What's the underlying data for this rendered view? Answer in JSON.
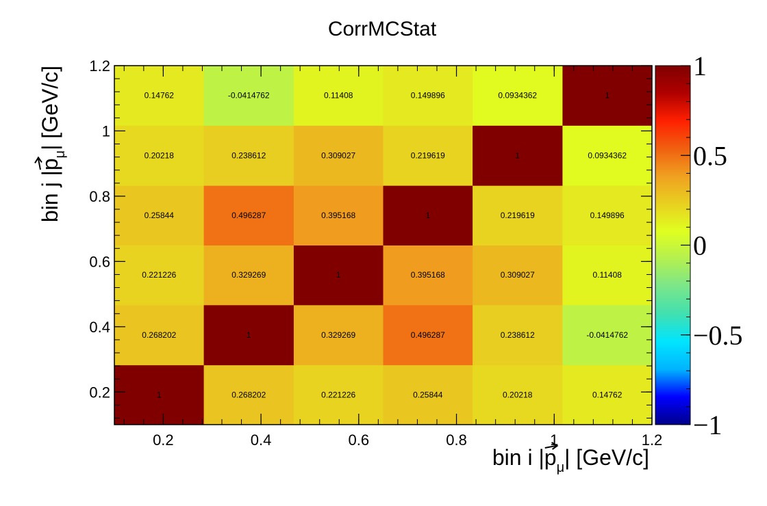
{
  "chart_data": {
    "type": "heatmap",
    "title": "CorrMCStat",
    "xlabel": {
      "prefix": "bin i |",
      "vec": "p",
      "sub": "μ",
      "suffix": "| [GeV/c]"
    },
    "ylabel": {
      "prefix": "bin j |",
      "vec": "p",
      "sub": "μ",
      "suffix": "| [GeV/c]"
    },
    "x_edges": [
      0.1,
      0.283,
      0.467,
      0.65,
      0.833,
      1.017,
      1.2
    ],
    "y_edges": [
      0.1,
      0.283,
      0.467,
      0.65,
      0.833,
      1.017,
      1.2
    ],
    "xlim": [
      0.1,
      1.2
    ],
    "ylim": [
      0.1,
      1.2
    ],
    "x_ticks": [
      0.2,
      0.4,
      0.6,
      0.8,
      1,
      1.2
    ],
    "x_tick_labels": [
      "0.2",
      "0.4",
      "0.6",
      "0.8",
      "1",
      "1.2"
    ],
    "y_ticks": [
      0.2,
      0.4,
      0.6,
      0.8,
      1,
      1.2
    ],
    "y_tick_labels": [
      "0.2",
      "0.4",
      "0.6",
      "0.8",
      "1",
      "1.2"
    ],
    "z": [
      [
        1,
        0.268202,
        0.221226,
        0.25844,
        0.20218,
        0.14762
      ],
      [
        0.268202,
        1,
        0.329269,
        0.496287,
        0.238612,
        -0.0414762
      ],
      [
        0.221226,
        0.329269,
        1,
        0.395168,
        0.309027,
        0.11408
      ],
      [
        0.25844,
        0.496287,
        0.395168,
        1,
        0.219619,
        0.149896
      ],
      [
        0.20218,
        0.238612,
        0.309027,
        0.219619,
        1,
        0.0934362
      ],
      [
        0.14762,
        -0.0414762,
        0.11408,
        0.149896,
        0.0934362,
        1
      ]
    ],
    "cell_labels": [
      [
        "1",
        "0.268202",
        "0.221226",
        "0.25844",
        "0.20218",
        "0.14762"
      ],
      [
        "0.268202",
        "1",
        "0.329269",
        "0.496287",
        "0.238612",
        "-0.0414762"
      ],
      [
        "0.221226",
        "0.329269",
        "1",
        "0.395168",
        "0.309027",
        "0.11408"
      ],
      [
        "0.25844",
        "0.496287",
        "0.395168",
        "1",
        "0.219619",
        "0.149896"
      ],
      [
        "0.20218",
        "0.238612",
        "0.309027",
        "0.219619",
        "1",
        "0.0934362"
      ],
      [
        "0.14762",
        "-0.0414762",
        "0.11408",
        "0.149896",
        "0.0934362",
        "1"
      ]
    ],
    "zlim": [
      -1,
      1
    ],
    "colorbar_ticks": [
      1,
      0.5,
      0,
      -0.5,
      -1
    ],
    "colorbar_tick_labels": [
      "1",
      "0.5",
      "0",
      "−0.5",
      "−1"
    ],
    "colormap": [
      "#00008b",
      "#0000ff",
      "#00b4ff",
      "#00e5ff",
      "#40e0b0",
      "#7ae68a",
      "#b4f050",
      "#e0ff20",
      "#e8d020",
      "#f0a020",
      "#f06010",
      "#ff2000",
      "#b00000",
      "#800000"
    ],
    "grid": false,
    "legend": "colorbar-right"
  }
}
